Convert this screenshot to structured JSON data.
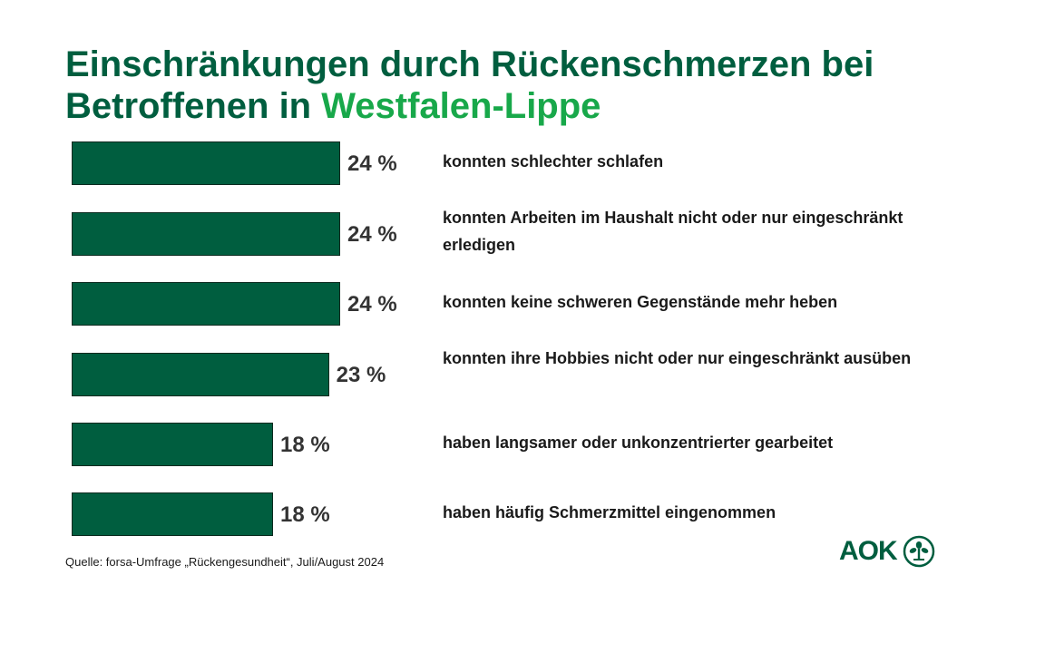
{
  "title": {
    "line1": "Einschränkungen durch Rückenschmerzen bei",
    "line2_prefix": "Betroffenen in ",
    "line2_highlight": "Westfalen-Lippe"
  },
  "chart_data": {
    "type": "bar",
    "orientation": "horizontal",
    "categories": [
      "konnten schlechter schlafen",
      "konnten Arbeiten im Haushalt nicht oder nur eingeschränkt erledigen",
      "konnten keine schweren Gegenstände mehr heben",
      "konnten ihre Hobbies nicht oder nur eingeschränkt ausüben",
      "haben langsamer oder unkonzentrierter gearbeitet",
      "haben häufig Schmerzmittel eingenommen"
    ],
    "values": [
      24,
      24,
      24,
      23,
      18,
      18
    ],
    "value_labels": [
      "24 %",
      "24 %",
      "24 %",
      "23 %",
      "18 %",
      "18 %"
    ],
    "xlabel": "",
    "ylabel": "",
    "grid": false,
    "legend": false
  },
  "source": "Quelle: forsa-Umfrage „Rückengesundheit“, Juli/August 2024",
  "logo": {
    "text": "AOK",
    "icon": "aok-tree-icon"
  },
  "colors": {
    "bar": "#005e3f",
    "title": "#005e3f",
    "highlight": "#18a84a",
    "value_text": "#333333"
  }
}
